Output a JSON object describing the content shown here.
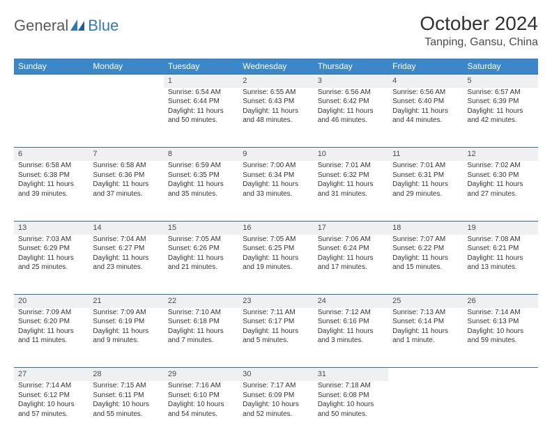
{
  "brand": {
    "general": "General",
    "blue": "Blue"
  },
  "header": {
    "month_title": "October 2024",
    "location": "Tanping, Gansu, China"
  },
  "colors": {
    "header_bg": "#3c87c7",
    "header_text": "#ffffff",
    "daynum_bg": "#eef0f1",
    "row_border": "#2f6da3",
    "text": "#333333",
    "logo_gray": "#5a5a5a",
    "logo_blue": "#2f79b9"
  },
  "weekdays": [
    "Sunday",
    "Monday",
    "Tuesday",
    "Wednesday",
    "Thursday",
    "Friday",
    "Saturday"
  ],
  "weeks": [
    [
      null,
      null,
      {
        "n": "1",
        "sr": "Sunrise: 6:54 AM",
        "ss": "Sunset: 6:44 PM",
        "d1": "Daylight: 11 hours",
        "d2": "and 50 minutes."
      },
      {
        "n": "2",
        "sr": "Sunrise: 6:55 AM",
        "ss": "Sunset: 6:43 PM",
        "d1": "Daylight: 11 hours",
        "d2": "and 48 minutes."
      },
      {
        "n": "3",
        "sr": "Sunrise: 6:56 AM",
        "ss": "Sunset: 6:42 PM",
        "d1": "Daylight: 11 hours",
        "d2": "and 46 minutes."
      },
      {
        "n": "4",
        "sr": "Sunrise: 6:56 AM",
        "ss": "Sunset: 6:40 PM",
        "d1": "Daylight: 11 hours",
        "d2": "and 44 minutes."
      },
      {
        "n": "5",
        "sr": "Sunrise: 6:57 AM",
        "ss": "Sunset: 6:39 PM",
        "d1": "Daylight: 11 hours",
        "d2": "and 42 minutes."
      }
    ],
    [
      {
        "n": "6",
        "sr": "Sunrise: 6:58 AM",
        "ss": "Sunset: 6:38 PM",
        "d1": "Daylight: 11 hours",
        "d2": "and 39 minutes."
      },
      {
        "n": "7",
        "sr": "Sunrise: 6:58 AM",
        "ss": "Sunset: 6:36 PM",
        "d1": "Daylight: 11 hours",
        "d2": "and 37 minutes."
      },
      {
        "n": "8",
        "sr": "Sunrise: 6:59 AM",
        "ss": "Sunset: 6:35 PM",
        "d1": "Daylight: 11 hours",
        "d2": "and 35 minutes."
      },
      {
        "n": "9",
        "sr": "Sunrise: 7:00 AM",
        "ss": "Sunset: 6:34 PM",
        "d1": "Daylight: 11 hours",
        "d2": "and 33 minutes."
      },
      {
        "n": "10",
        "sr": "Sunrise: 7:01 AM",
        "ss": "Sunset: 6:32 PM",
        "d1": "Daylight: 11 hours",
        "d2": "and 31 minutes."
      },
      {
        "n": "11",
        "sr": "Sunrise: 7:01 AM",
        "ss": "Sunset: 6:31 PM",
        "d1": "Daylight: 11 hours",
        "d2": "and 29 minutes."
      },
      {
        "n": "12",
        "sr": "Sunrise: 7:02 AM",
        "ss": "Sunset: 6:30 PM",
        "d1": "Daylight: 11 hours",
        "d2": "and 27 minutes."
      }
    ],
    [
      {
        "n": "13",
        "sr": "Sunrise: 7:03 AM",
        "ss": "Sunset: 6:29 PM",
        "d1": "Daylight: 11 hours",
        "d2": "and 25 minutes."
      },
      {
        "n": "14",
        "sr": "Sunrise: 7:04 AM",
        "ss": "Sunset: 6:27 PM",
        "d1": "Daylight: 11 hours",
        "d2": "and 23 minutes."
      },
      {
        "n": "15",
        "sr": "Sunrise: 7:05 AM",
        "ss": "Sunset: 6:26 PM",
        "d1": "Daylight: 11 hours",
        "d2": "and 21 minutes."
      },
      {
        "n": "16",
        "sr": "Sunrise: 7:05 AM",
        "ss": "Sunset: 6:25 PM",
        "d1": "Daylight: 11 hours",
        "d2": "and 19 minutes."
      },
      {
        "n": "17",
        "sr": "Sunrise: 7:06 AM",
        "ss": "Sunset: 6:24 PM",
        "d1": "Daylight: 11 hours",
        "d2": "and 17 minutes."
      },
      {
        "n": "18",
        "sr": "Sunrise: 7:07 AM",
        "ss": "Sunset: 6:22 PM",
        "d1": "Daylight: 11 hours",
        "d2": "and 15 minutes."
      },
      {
        "n": "19",
        "sr": "Sunrise: 7:08 AM",
        "ss": "Sunset: 6:21 PM",
        "d1": "Daylight: 11 hours",
        "d2": "and 13 minutes."
      }
    ],
    [
      {
        "n": "20",
        "sr": "Sunrise: 7:09 AM",
        "ss": "Sunset: 6:20 PM",
        "d1": "Daylight: 11 hours",
        "d2": "and 11 minutes."
      },
      {
        "n": "21",
        "sr": "Sunrise: 7:09 AM",
        "ss": "Sunset: 6:19 PM",
        "d1": "Daylight: 11 hours",
        "d2": "and 9 minutes."
      },
      {
        "n": "22",
        "sr": "Sunrise: 7:10 AM",
        "ss": "Sunset: 6:18 PM",
        "d1": "Daylight: 11 hours",
        "d2": "and 7 minutes."
      },
      {
        "n": "23",
        "sr": "Sunrise: 7:11 AM",
        "ss": "Sunset: 6:17 PM",
        "d1": "Daylight: 11 hours",
        "d2": "and 5 minutes."
      },
      {
        "n": "24",
        "sr": "Sunrise: 7:12 AM",
        "ss": "Sunset: 6:16 PM",
        "d1": "Daylight: 11 hours",
        "d2": "and 3 minutes."
      },
      {
        "n": "25",
        "sr": "Sunrise: 7:13 AM",
        "ss": "Sunset: 6:14 PM",
        "d1": "Daylight: 11 hours",
        "d2": "and 1 minute."
      },
      {
        "n": "26",
        "sr": "Sunrise: 7:14 AM",
        "ss": "Sunset: 6:13 PM",
        "d1": "Daylight: 10 hours",
        "d2": "and 59 minutes."
      }
    ],
    [
      {
        "n": "27",
        "sr": "Sunrise: 7:14 AM",
        "ss": "Sunset: 6:12 PM",
        "d1": "Daylight: 10 hours",
        "d2": "and 57 minutes."
      },
      {
        "n": "28",
        "sr": "Sunrise: 7:15 AM",
        "ss": "Sunset: 6:11 PM",
        "d1": "Daylight: 10 hours",
        "d2": "and 55 minutes."
      },
      {
        "n": "29",
        "sr": "Sunrise: 7:16 AM",
        "ss": "Sunset: 6:10 PM",
        "d1": "Daylight: 10 hours",
        "d2": "and 54 minutes."
      },
      {
        "n": "30",
        "sr": "Sunrise: 7:17 AM",
        "ss": "Sunset: 6:09 PM",
        "d1": "Daylight: 10 hours",
        "d2": "and 52 minutes."
      },
      {
        "n": "31",
        "sr": "Sunrise: 7:18 AM",
        "ss": "Sunset: 6:08 PM",
        "d1": "Daylight: 10 hours",
        "d2": "and 50 minutes."
      },
      null,
      null
    ]
  ]
}
